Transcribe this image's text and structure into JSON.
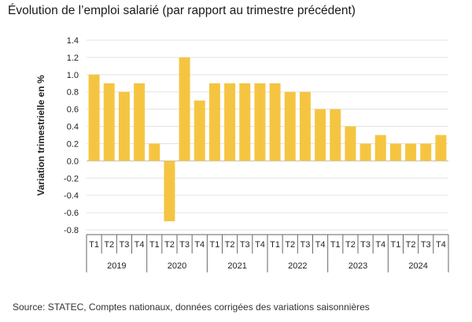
{
  "chart_data": {
    "type": "bar",
    "title": "Évolution de l’emploi salarié (par rapport au trimestre précédent)",
    "ylabel": "Variation trimestrielle en %",
    "ylim": [
      -0.8,
      1.4
    ],
    "yticks": [
      "1.4",
      "1.2",
      "1.0",
      "0.8",
      "0.6",
      "0.4",
      "0.2",
      "0.0",
      "-0.2",
      "-0.4",
      "-0.6",
      "-0.8"
    ],
    "ytick_values": [
      1.4,
      1.2,
      1.0,
      0.8,
      0.6,
      0.4,
      0.2,
      0.0,
      -0.2,
      -0.4,
      -0.6,
      -0.8
    ],
    "grid": true,
    "bar_color": "#f5c542",
    "years": [
      "2019",
      "2020",
      "2021",
      "2022",
      "2023",
      "2024"
    ],
    "quarters": [
      "T1",
      "T2",
      "T3",
      "T4"
    ],
    "values": [
      1.0,
      0.9,
      0.8,
      0.9,
      0.2,
      -0.7,
      1.2,
      0.7,
      0.9,
      0.9,
      0.9,
      0.9,
      0.9,
      0.8,
      0.8,
      0.6,
      0.6,
      0.4,
      0.2,
      0.3,
      0.2,
      0.2,
      0.2,
      0.3
    ]
  },
  "source": "Source: STATEC, Comptes nationaux, données corrigées des variations saisonnières"
}
